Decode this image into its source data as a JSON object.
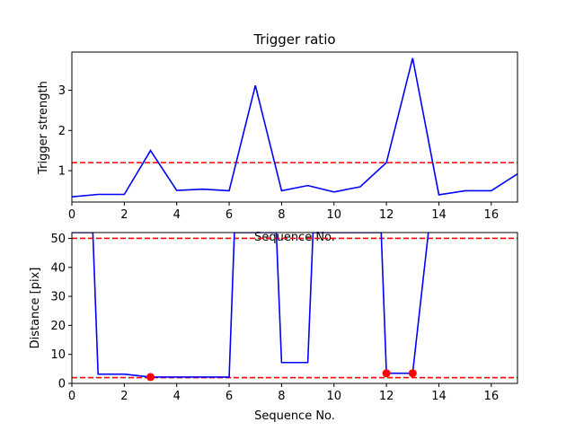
{
  "chart_data": [
    {
      "type": "line",
      "title": "Trigger ratio",
      "xlabel": "Sequence No.",
      "ylabel": "Trigger strength",
      "xlim": [
        0,
        17
      ],
      "ylim": [
        0.22,
        3.95
      ],
      "xticks": [
        0,
        2,
        4,
        6,
        8,
        10,
        12,
        14,
        16
      ],
      "yticks": [
        1,
        2,
        3
      ],
      "grid": false,
      "series": [
        {
          "color": "#0000ff",
          "x": [
            0,
            1,
            2,
            3,
            4,
            5,
            6,
            7,
            8,
            9,
            10,
            11,
            12,
            13,
            14,
            15,
            16,
            17
          ],
          "values": [
            0.35,
            0.41,
            0.41,
            1.5,
            0.51,
            0.54,
            0.5,
            3.12,
            0.5,
            0.63,
            0.47,
            0.6,
            1.2,
            3.8,
            0.4,
            0.5,
            0.5,
            0.92
          ]
        }
      ],
      "threshold": {
        "value": 1.2,
        "color": "#ff0000",
        "style": "dashed"
      }
    },
    {
      "type": "line",
      "title": "",
      "xlabel": "Sequence No.",
      "ylabel": "Distance [pix]",
      "xlim": [
        0,
        17
      ],
      "ylim": [
        0,
        52
      ],
      "xticks": [
        0,
        2,
        4,
        6,
        8,
        10,
        12,
        14,
        16
      ],
      "yticks": [
        0,
        10,
        20,
        30,
        40,
        50
      ],
      "grid": false,
      "series": [
        {
          "color": "#0000ff",
          "x": [
            0,
            0.8,
            1,
            2,
            3,
            4,
            5,
            6,
            6.2,
            7.8,
            8,
            9,
            9.2,
            11.8,
            12,
            13,
            13.6
          ],
          "values": [
            52,
            52,
            3.2,
            3.2,
            2.2,
            2.2,
            2.2,
            2.2,
            52,
            52,
            7.2,
            7.2,
            52,
            52,
            3.5,
            3.5,
            52
          ]
        }
      ],
      "markers": {
        "color": "#ff0000",
        "x": [
          3,
          12,
          13
        ],
        "values": [
          2.2,
          3.5,
          3.5
        ]
      },
      "thresholds": [
        {
          "value": 50,
          "color": "#ff0000",
          "style": "dashed"
        },
        {
          "value": 2,
          "color": "#ff0000",
          "style": "dashed"
        }
      ]
    }
  ]
}
